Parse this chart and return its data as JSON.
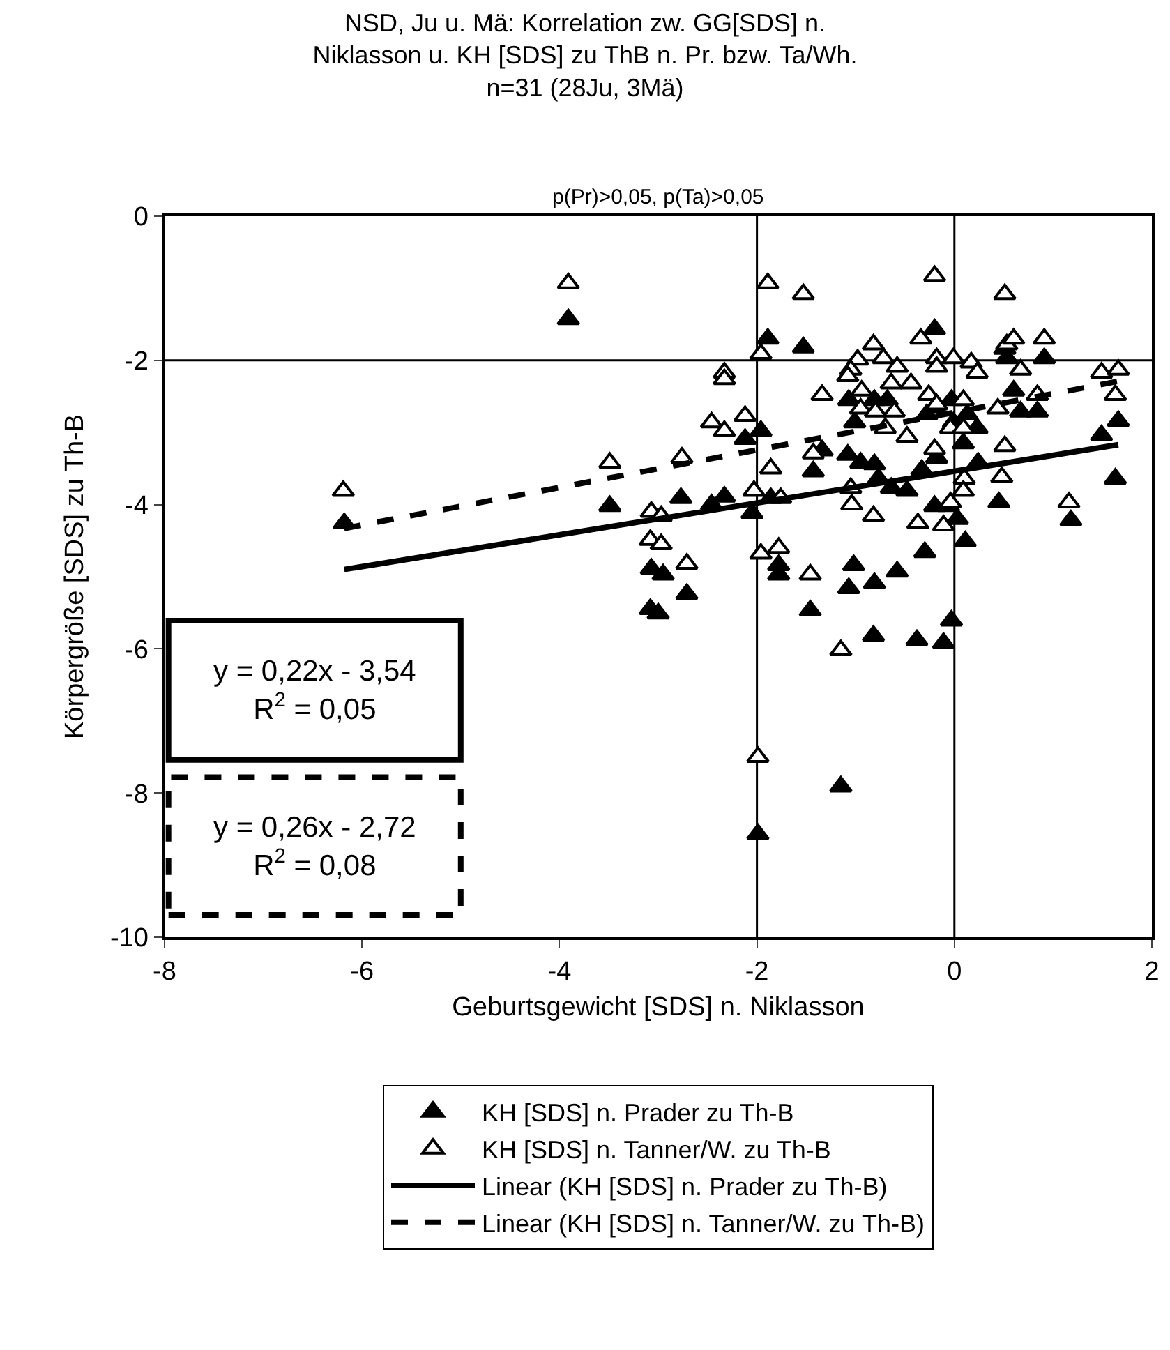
{
  "chart_data": {
    "type": "scatter",
    "title": "NSD, Ju u. Mä: Korrelation zw. GG[SDS] n.\nNiklasson u. KH [SDS] zu ThB n. Pr. bzw. Ta/Wh.\nn=31 (28Ju, 3Mä)",
    "subtitle": "p(Pr)>0,05, p(Ta)>0,05",
    "xlabel": "Geburtsgewicht [SDS] n. Niklasson",
    "ylabel": "Körpergröße [SDS] zu Th-B",
    "xlim": [
      -8,
      2
    ],
    "xticks": [
      -8,
      -6,
      -4,
      -2,
      0,
      2
    ],
    "ylim": [
      -10,
      0
    ],
    "yticks": [
      -10,
      -8,
      -6,
      -4,
      -2,
      0
    ],
    "grid": false,
    "legend": "bottom",
    "ref_lines": [
      {
        "axis": "y",
        "value": -2,
        "color": "#000000"
      },
      {
        "axis": "x",
        "value": -2,
        "color": "#000000"
      },
      {
        "axis": "x",
        "value": 0,
        "color": "#000000"
      }
    ],
    "annotations": [
      "y = 0,22x - 3,54\nR$^{2}$ = 0,05",
      "y = 0,26x - 2,72\nR$^{2}$ = 0,08"
    ],
    "series": [
      {
        "name": "KH [SDS] n. Prader zu Th-B",
        "marker": "triangle",
        "color": "#000000",
        "x": [
          -6.18,
          -3.91,
          -3.49,
          -3.07,
          -3.08,
          -1.89,
          -1.53,
          -2.12,
          -1.96,
          -2.77,
          -2.46,
          -2.33,
          -2.05,
          -1.86,
          -1.43,
          -1.34,
          -1.08,
          -1.07,
          -0.95,
          -0.81,
          -0.81,
          -0.68,
          -1.01,
          -0.77,
          -0.64,
          -0.48,
          -0.33,
          -0.18,
          -0.28,
          -0.2,
          -0.03,
          -0.01,
          0.09,
          -0.2,
          0.13,
          0.23,
          0.24,
          -0.2,
          -0.06,
          0.03,
          0.11,
          -0.3,
          0.45,
          0.51,
          0.53,
          0.6,
          0.67,
          0.84,
          0.91,
          1.49,
          1.66,
          1.63,
          1.18,
          -2.95,
          -2.71,
          -1.78,
          -1.78,
          -1.02,
          -1.07,
          -0.81,
          -0.58,
          -1.46,
          -3.0,
          -0.82,
          -0.38,
          -0.11,
          -0.03,
          -1.15,
          -1.99
        ],
        "values": [
          -4.26,
          -1.43,
          -4.02,
          -4.89,
          -5.45,
          -1.7,
          -1.82,
          -3.09,
          -2.98,
          -3.91,
          -4.0,
          -3.89,
          -4.12,
          -3.91,
          -3.54,
          -3.25,
          -3.31,
          -2.55,
          -3.42,
          -3.44,
          -2.55,
          -2.55,
          -2.86,
          -3.64,
          -3.77,
          -3.81,
          -3.52,
          -3.35,
          -2.75,
          -2.65,
          -2.55,
          -2.86,
          -3.15,
          -1.57,
          -2.75,
          -2.94,
          -3.42,
          -4.02,
          -4.02,
          -4.2,
          -4.51,
          -4.66,
          -3.97,
          -1.84,
          -1.97,
          -2.42,
          -2.71,
          -2.71,
          -1.97,
          -3.04,
          -2.84,
          -3.64,
          -4.22,
          -4.97,
          -5.24,
          -4.84,
          -4.97,
          -4.84,
          -5.16,
          -5.09,
          -4.93,
          -5.47,
          -5.51,
          -5.82,
          -5.88,
          -5.92,
          -5.61,
          -7.91,
          -8.57
        ]
      },
      {
        "name": "KH [SDS] n. Tanner/W. zu Th-B",
        "marker": "triangle",
        "color": "#ffffff",
        "x": [
          -3.91,
          -6.19,
          -3.49,
          -3.07,
          -3.08,
          -1.89,
          -1.53,
          -0.2,
          0.51,
          -1.96,
          -2.33,
          -2.33,
          -0.98,
          -0.82,
          -0.72,
          -0.58,
          -0.34,
          -0.18,
          -0.18,
          -0.01,
          0.17,
          0.23,
          0.53,
          0.6,
          0.91,
          0.67,
          -1.05,
          -1.08,
          -0.94,
          -0.64,
          -0.44,
          -1.34,
          -0.26,
          0.09,
          -0.18,
          -0.95,
          -0.8,
          -0.61,
          0.44,
          0.84,
          1.49,
          1.66,
          1.63,
          -2.46,
          -2.33,
          -2.12,
          -2.76,
          -1.43,
          -0.7,
          -0.48,
          -0.04,
          0.09,
          -0.2,
          0.51,
          -1.86,
          -1.05,
          -1.04,
          -0.82,
          -0.37,
          -0.11,
          -0.04,
          0.1,
          0.09,
          0.48,
          1.16,
          -2.03,
          -1.76,
          -2.97,
          -2.97,
          -2.71,
          -1.96,
          -1.78,
          -1.46,
          -1.15,
          -1.99
        ],
        "values": [
          -0.93,
          -3.81,
          -3.42,
          -4.1,
          -4.49,
          -0.93,
          -1.08,
          -0.83,
          -1.08,
          -1.91,
          -2.17,
          -2.26,
          -1.99,
          -1.78,
          -1.97,
          -2.09,
          -1.7,
          -1.97,
          -2.09,
          -1.97,
          -2.03,
          -2.17,
          -1.78,
          -1.7,
          -1.7,
          -2.13,
          -2.13,
          -2.22,
          -2.42,
          -2.32,
          -2.32,
          -2.48,
          -2.48,
          -2.55,
          -2.61,
          -2.67,
          -2.71,
          -2.71,
          -2.67,
          -2.48,
          -2.17,
          -2.13,
          -2.48,
          -2.86,
          -2.98,
          -2.77,
          -3.35,
          -3.29,
          -2.94,
          -3.06,
          -2.94,
          -2.94,
          -3.23,
          -3.19,
          -3.5,
          -3.77,
          -4.0,
          -4.16,
          -4.26,
          -4.29,
          -3.97,
          -3.64,
          -3.81,
          -3.62,
          -3.97,
          -3.81,
          -3.91,
          -4.16,
          -4.55,
          -4.82,
          -4.68,
          -4.6,
          -4.97,
          -6.02,
          -7.5
        ]
      },
      {
        "name": "Linear (KH [SDS] n. Prader zu Th-B)",
        "type": "line",
        "line_style": "solid",
        "color": "#000000",
        "x": [
          -6.18,
          1.66
        ],
        "values": [
          -4.9,
          -3.17
        ]
      },
      {
        "name": "Linear (KH [SDS] n. Tanner/W. zu Th-B)",
        "type": "line",
        "line_style": "dashed",
        "color": "#000000",
        "x": [
          -6.18,
          1.66
        ],
        "values": [
          -4.33,
          -2.29
        ]
      }
    ]
  }
}
